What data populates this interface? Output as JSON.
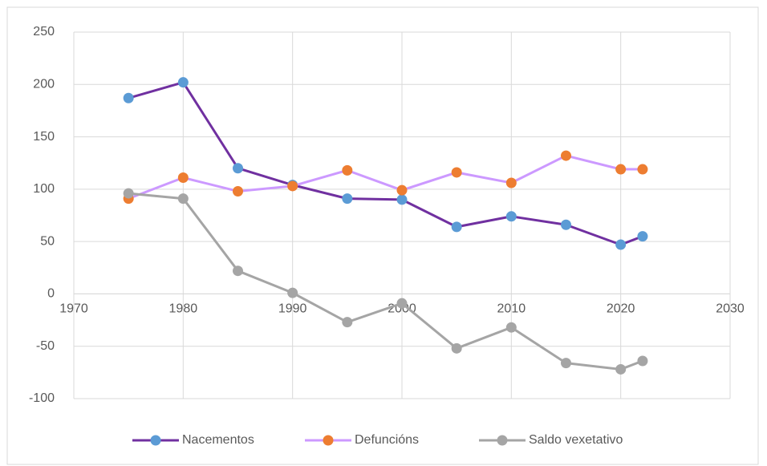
{
  "chart_data": {
    "type": "line",
    "x": [
      1975,
      1980,
      1985,
      1990,
      1995,
      2000,
      2005,
      2010,
      2015,
      2020,
      2022
    ],
    "series": [
      {
        "name": "Nacementos",
        "color": "#7030a0",
        "marker_color": "#5b9bd5",
        "values": [
          187,
          202,
          120,
          104,
          91,
          90,
          64,
          74,
          66,
          47,
          55
        ]
      },
      {
        "name": "Defuncións",
        "color": "#cc99ff",
        "marker_color": "#ed7d31",
        "values": [
          91,
          111,
          98,
          103,
          118,
          99,
          116,
          106,
          132,
          119,
          119
        ]
      },
      {
        "name": "Saldo vexetativo",
        "color": "#a5a5a5",
        "marker_color": "#a5a5a5",
        "values": [
          96,
          91,
          22,
          1,
          -27,
          -9,
          -52,
          -32,
          -66,
          -72,
          -64
        ]
      }
    ],
    "xlim": [
      1970,
      2030
    ],
    "xticks": [
      1970,
      1980,
      1990,
      2000,
      2010,
      2020,
      2030
    ],
    "ylim": [
      -100,
      250
    ],
    "yticks": [
      -100,
      -50,
      0,
      50,
      100,
      150,
      200,
      250
    ],
    "grid": true,
    "legend": "bottom"
  }
}
